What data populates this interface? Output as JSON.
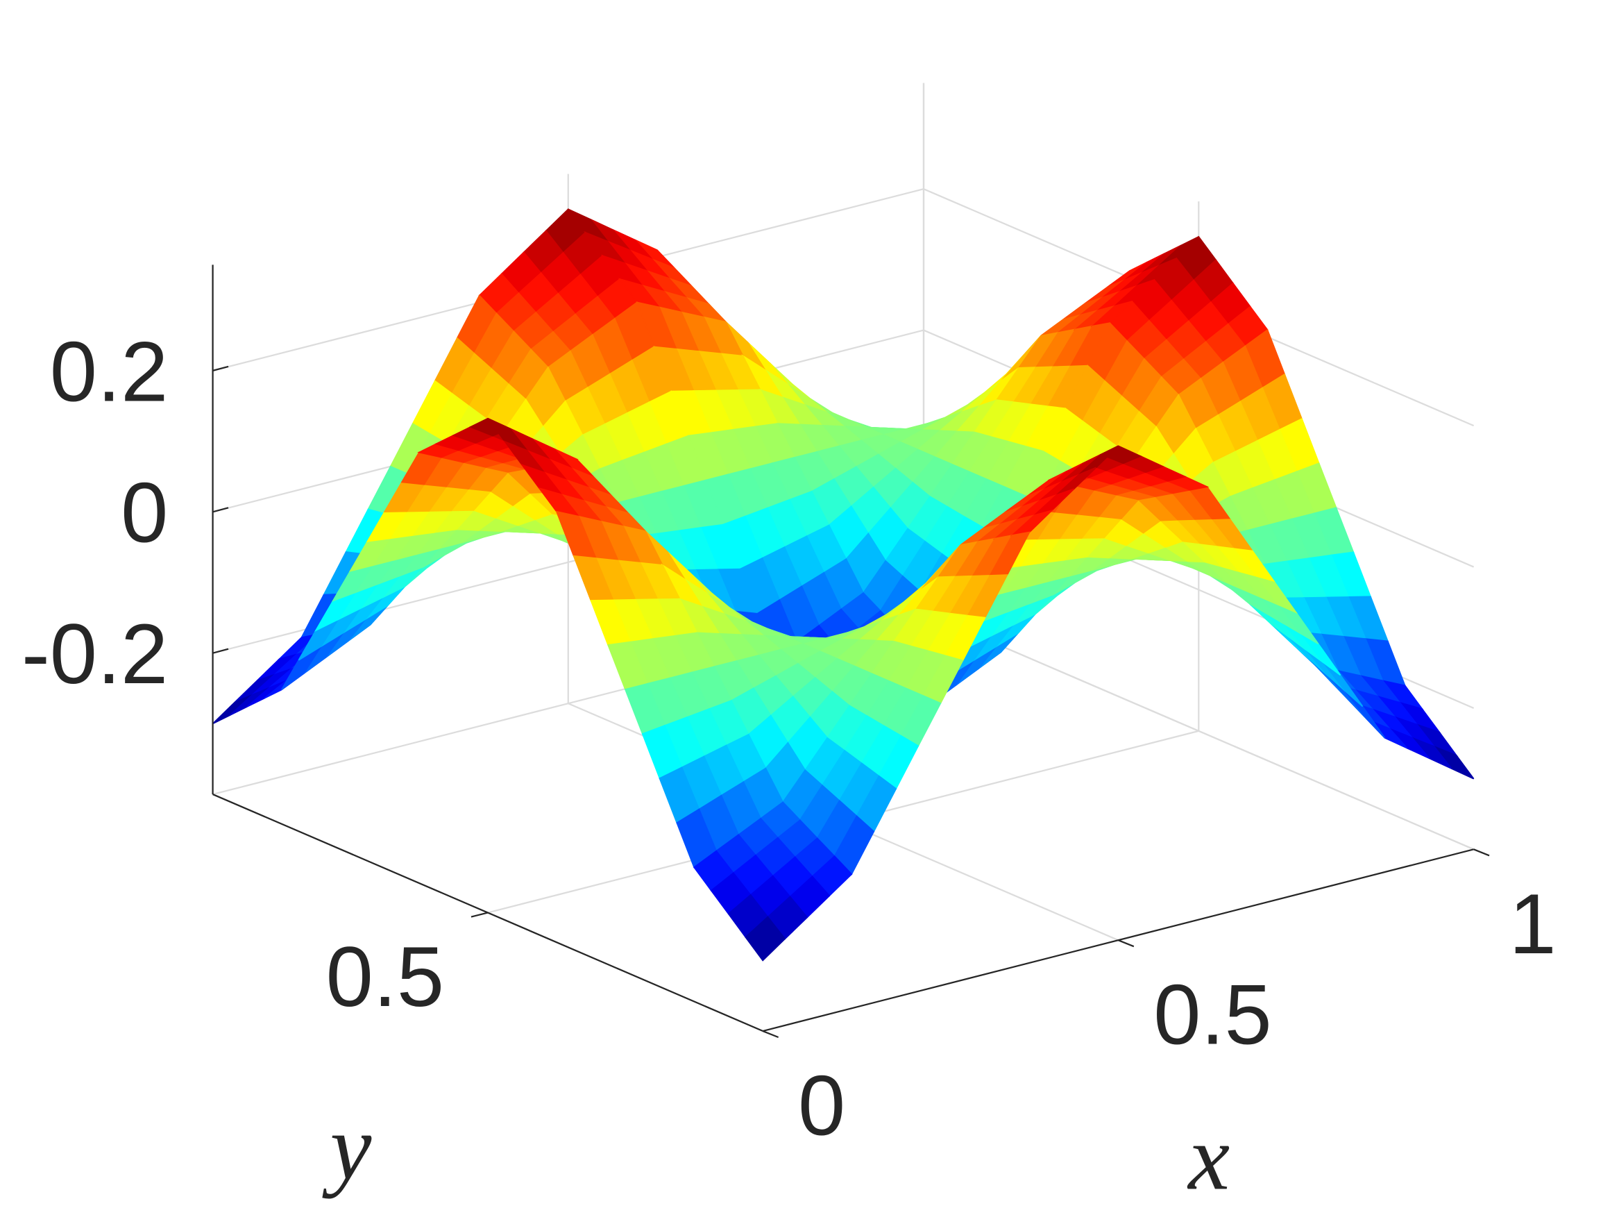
{
  "chart_data": {
    "type": "surface",
    "x": [
      0,
      0.125,
      0.25,
      0.375,
      0.5,
      0.625,
      0.75,
      0.875,
      1
    ],
    "y": [
      0,
      0.125,
      0.25,
      0.375,
      0.5,
      0.625,
      0.75,
      0.875,
      1
    ],
    "z": [
      [
        -0.3,
        -0.21,
        0,
        0.21,
        0.3,
        0.21,
        0,
        -0.21,
        -0.3
      ],
      [
        -0.21,
        -0.15,
        0,
        0.15,
        0.21,
        0.15,
        0,
        -0.15,
        -0.21
      ],
      [
        0,
        0,
        0,
        0,
        0,
        0,
        0,
        0,
        0
      ],
      [
        0.21,
        0.15,
        0,
        -0.15,
        -0.21,
        -0.15,
        0,
        0.15,
        0.21
      ],
      [
        0.3,
        0.21,
        0,
        -0.21,
        -0.3,
        -0.21,
        0,
        0.21,
        0.3
      ],
      [
        0.21,
        0.15,
        0,
        -0.15,
        -0.21,
        -0.15,
        0,
        0.15,
        0.21
      ],
      [
        0,
        0,
        0,
        0,
        0,
        0,
        0,
        0,
        0
      ],
      [
        -0.21,
        -0.15,
        0,
        0.15,
        0.21,
        0.15,
        0,
        -0.15,
        -0.21
      ],
      [
        -0.3,
        -0.21,
        0,
        0.21,
        0.3,
        0.21,
        0,
        -0.21,
        -0.3
      ]
    ],
    "colormap": "jet",
    "xlabel": "x",
    "ylabel": "y",
    "xlim": [
      0,
      1
    ],
    "ylim": [
      0,
      1
    ],
    "zlim": [
      -0.4,
      0.35
    ],
    "xticks": [
      0,
      0.5,
      1
    ],
    "yticks": [
      0.5
    ],
    "zticks": [
      -0.2,
      0,
      0.2
    ],
    "grid": true
  }
}
